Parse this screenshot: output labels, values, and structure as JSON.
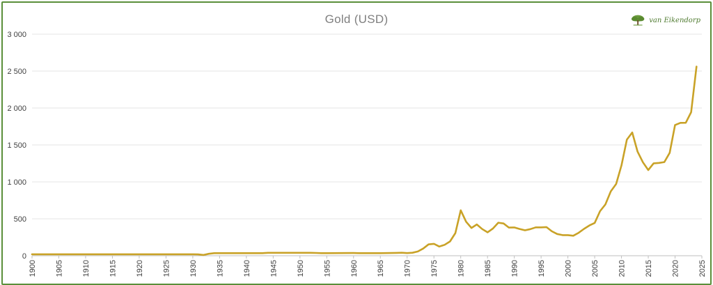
{
  "chart_data": {
    "type": "line",
    "title": "Gold (USD)",
    "xlabel": "",
    "ylabel": "",
    "xlim": [
      1900,
      2025
    ],
    "ylim": [
      0,
      3000
    ],
    "y_ticks": [
      0,
      500,
      1000,
      1500,
      2000,
      2500,
      3000
    ],
    "y_tick_labels": [
      "0",
      "500",
      "1 000",
      "1 500",
      "2 000",
      "2 500",
      "3 000"
    ],
    "x_ticks": [
      1900,
      1905,
      1910,
      1915,
      1920,
      1925,
      1930,
      1935,
      1940,
      1945,
      1950,
      1955,
      1960,
      1965,
      1970,
      1975,
      1980,
      1985,
      1990,
      1995,
      2000,
      2005,
      2010,
      2015,
      2020,
      2025
    ],
    "grid": "horizontal",
    "legend": "none",
    "series": [
      {
        "color": "#c9a227",
        "x": [
          1900,
          1905,
          1910,
          1915,
          1920,
          1925,
          1930,
          1931,
          1932,
          1933,
          1934,
          1935,
          1940,
          1941,
          1942,
          1943,
          1944,
          1945,
          1950,
          1951,
          1952,
          1953,
          1954,
          1955,
          1960,
          1961,
          1962,
          1965,
          1968,
          1969,
          1970,
          1971,
          1972,
          1973,
          1974,
          1975,
          1976,
          1977,
          1978,
          1979,
          1980,
          1981,
          1982,
          1983,
          1984,
          1985,
          1986,
          1987,
          1988,
          1989,
          1990,
          1991,
          1992,
          1993,
          1994,
          1995,
          1996,
          1997,
          1998,
          1999,
          2000,
          2001,
          2002,
          2003,
          2004,
          2005,
          2006,
          2007,
          2008,
          2009,
          2010,
          2011,
          2012,
          2013,
          2014,
          2015,
          2016,
          2017,
          2018,
          2019,
          2020,
          2021,
          2022,
          2023,
          2024
        ],
        "y": [
          20,
          20,
          20,
          20,
          20,
          20,
          20,
          18,
          10,
          26,
          35,
          35,
          35,
          35,
          35,
          35,
          40,
          40,
          40,
          40,
          40,
          38,
          35,
          35,
          37,
          35,
          35,
          35,
          39,
          41,
          36,
          41,
          58,
          97,
          154,
          161,
          125,
          148,
          193,
          307,
          615,
          460,
          376,
          424,
          361,
          317,
          368,
          447,
          437,
          381,
          383,
          362,
          344,
          360,
          384,
          384,
          388,
          331,
          294,
          279,
          279,
          271,
          310,
          363,
          409,
          444,
          604,
          695,
          872,
          972,
          1225,
          1572,
          1669,
          1411,
          1266,
          1160,
          1251,
          1257,
          1268,
          1393,
          1770,
          1799,
          1800,
          1943,
          2560
        ]
      }
    ]
  },
  "logo": {
    "icon": "tree-icon",
    "text": "van Eikendorp"
  }
}
